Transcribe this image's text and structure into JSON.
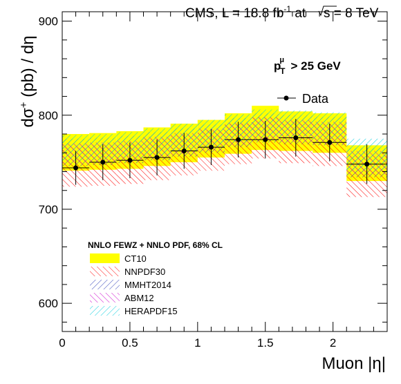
{
  "header": {
    "experiment": "CMS, L = 18.8 fb",
    "lumi_exp": "-1",
    "energy_prefix": "at",
    "energy_label": "s = 8 TeV"
  },
  "axes": {
    "y_title_prefix": "dσ",
    "y_title_sup": "+",
    "y_title_suffix": " (pb) / dη",
    "x_title": "Muon |η|"
  },
  "cut": {
    "symbol": "p",
    "sup": "μ",
    "sub": "T",
    "text": "> 25 GeV"
  },
  "legend": {
    "data_label": "Data",
    "pdf_header": "NNLO FEWZ + NNLO PDF, 68% CL",
    "items": [
      {
        "label": "CT10",
        "style": "solid",
        "color": "#ffff00"
      },
      {
        "label": "NNPDF30",
        "style": "hatch-down",
        "color": "#ff0000"
      },
      {
        "label": "MMHT2014",
        "style": "hatch-up",
        "color": "#3344bb"
      },
      {
        "label": "ABM12",
        "style": "hatch-down",
        "color": "#cc00cc"
      },
      {
        "label": "HERAPDF15",
        "style": "hatch-up",
        "color": "#00ccdd"
      }
    ]
  },
  "chart_data": {
    "type": "scatter",
    "xlabel": "Muon |η|",
    "ylabel": "dσ+ (pb) / dη",
    "xlim": [
      0,
      2.4
    ],
    "ylim": [
      570,
      910
    ],
    "x_ticks": [
      0,
      0.5,
      1,
      1.5,
      2
    ],
    "x_tick_labels": [
      "0",
      "0.5",
      "1",
      "1.5",
      "2"
    ],
    "y_ticks": [
      600,
      700,
      800,
      900
    ],
    "y_tick_labels": [
      "600",
      "700",
      "800",
      "900"
    ],
    "bins": [
      [
        0,
        0.2
      ],
      [
        0.2,
        0.4
      ],
      [
        0.4,
        0.6
      ],
      [
        0.6,
        0.8
      ],
      [
        0.8,
        1.0
      ],
      [
        1.0,
        1.2
      ],
      [
        1.2,
        1.4
      ],
      [
        1.4,
        1.6
      ],
      [
        1.6,
        1.85
      ],
      [
        1.85,
        2.1
      ],
      [
        2.1,
        2.4
      ]
    ],
    "data": {
      "name": "Data",
      "x": [
        0.1,
        0.3,
        0.5,
        0.7,
        0.9,
        1.1,
        1.3,
        1.5,
        1.725,
        1.975,
        2.25
      ],
      "y": [
        744,
        750,
        752,
        755,
        762,
        766,
        774,
        774,
        776,
        771,
        748
      ],
      "err": [
        18,
        19,
        19,
        19,
        19,
        19,
        19,
        20,
        20,
        20,
        21
      ]
    },
    "series": [
      {
        "name": "CT10",
        "lo": [
          741,
          742,
          743,
          746,
          750,
          755,
          759,
          763,
          762,
          760,
          730
        ],
        "hi": [
          780,
          781,
          783,
          787,
          791,
          795,
          802,
          810,
          804,
          802,
          768
        ]
      },
      {
        "name": "NNPDF30",
        "lo": [
          724,
          725,
          727,
          731,
          736,
          741,
          748,
          754,
          749,
          746,
          713
        ],
        "hi": [
          767,
          768,
          770,
          775,
          779,
          784,
          791,
          798,
          793,
          791,
          757
        ]
      },
      {
        "name": "MMHT2014",
        "lo": [
          746,
          747,
          749,
          752,
          756,
          760,
          766,
          771,
          769,
          768,
          734
        ],
        "hi": [
          775,
          776,
          778,
          782,
          786,
          790,
          797,
          802,
          800,
          798,
          765
        ]
      },
      {
        "name": "ABM12",
        "lo": [
          748,
          749,
          751,
          754,
          758,
          762,
          768,
          773,
          771,
          769,
          737
        ],
        "hi": [
          770,
          771,
          773,
          777,
          781,
          786,
          792,
          797,
          795,
          793,
          762
        ]
      },
      {
        "name": "HERAPDF15",
        "lo": [
          752,
          753,
          755,
          758,
          762,
          766,
          772,
          777,
          777,
          775,
          742
        ],
        "hi": [
          779,
          780,
          782,
          786,
          791,
          795,
          801,
          806,
          805,
          803,
          775
        ]
      }
    ],
    "grid": false,
    "legend_position": "bottom-left"
  }
}
